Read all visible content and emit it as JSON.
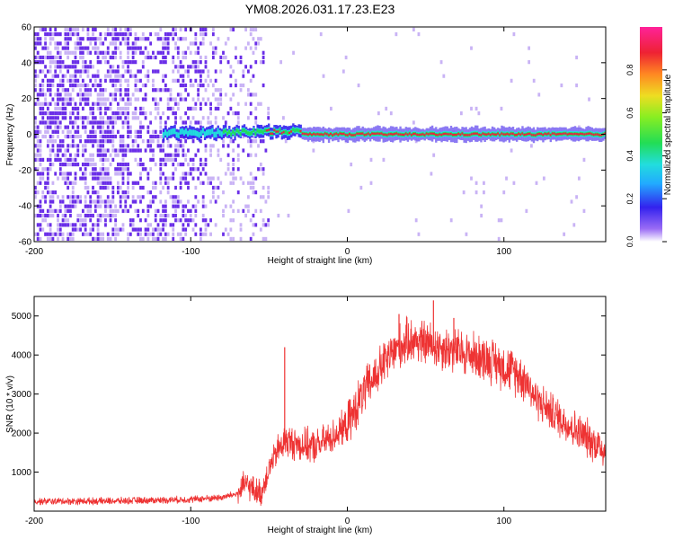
{
  "title": "YM08.2026.031.17.23.E23",
  "colors": {
    "line": "#ee3333",
    "noise_purple": "#6a2ee8",
    "noise_light": "#c9b3f5",
    "band_red": "#e8233f",
    "band_green": "#22dd55",
    "band_cyan": "#22dddd",
    "band_blue": "#3322ee"
  },
  "chart_data": [
    {
      "type": "heatmap",
      "name": "spectrogram",
      "xlabel": "Height of straight line (km)",
      "ylabel": "Frequency (Hz)",
      "xlim": [
        -200,
        165
      ],
      "ylim": [
        -60,
        60
      ],
      "xticks": [
        -200,
        -100,
        0,
        100
      ],
      "yticks": [
        -60,
        -40,
        -20,
        0,
        20,
        40,
        60
      ],
      "colorbar": {
        "label": "Normalized spectral amplitude",
        "range": [
          0,
          1
        ],
        "ticks": [
          "0.0",
          "0.2",
          "0.4",
          "0.6",
          "0.8"
        ],
        "tick_values": [
          0.0,
          0.2,
          0.4,
          0.6,
          0.8
        ]
      },
      "features": {
        "noise_region_x": [
          -200,
          -50
        ],
        "signal_band_center_hz": 0,
        "signal_onset_x": -118,
        "strong_band_start_x": -30
      }
    },
    {
      "type": "line",
      "name": "snr",
      "xlabel": "Height of straight line (km)",
      "ylabel": "SNR (10 * v/v)",
      "xlim": [
        -200,
        165
      ],
      "ylim": [
        0,
        5500
      ],
      "xticks": [
        -200,
        -100,
        0,
        100
      ],
      "yticks": [
        1000,
        2000,
        3000,
        4000,
        5000
      ],
      "series": [
        {
          "name": "SNR",
          "x": [
            -200,
            -150,
            -100,
            -80,
            -70,
            -65,
            -60,
            -55,
            -50,
            -45,
            -40,
            -30,
            -20,
            -10,
            0,
            10,
            20,
            30,
            40,
            50,
            60,
            70,
            80,
            90,
            100,
            110,
            115,
            120,
            130,
            140,
            150,
            160,
            165
          ],
          "y": [
            250,
            260,
            300,
            350,
            450,
            700,
            550,
            450,
            1100,
            1500,
            1800,
            1700,
            1650,
            1900,
            2200,
            3000,
            3600,
            4100,
            4400,
            4300,
            4200,
            4100,
            4000,
            3900,
            3700,
            3500,
            3300,
            2900,
            2550,
            2250,
            1950,
            1700,
            1550
          ]
        }
      ],
      "spikes": [
        {
          "x": -40,
          "y": 4200
        },
        {
          "x": 55,
          "y": 5400
        },
        {
          "x": 33,
          "y": 5050
        },
        {
          "x": 68,
          "y": 4950
        }
      ]
    }
  ]
}
